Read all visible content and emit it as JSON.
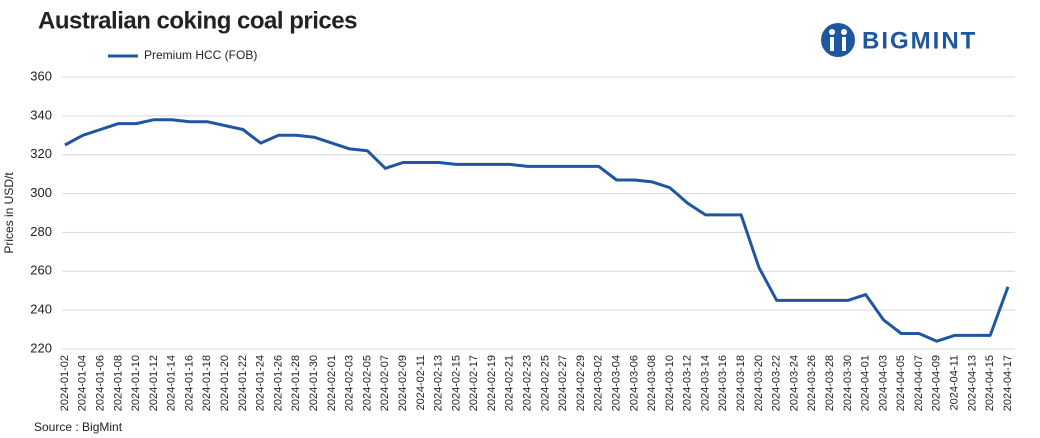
{
  "chart_data": {
    "type": "line",
    "title": "Australian coking coal prices",
    "brand": "BIGMINT",
    "source": "Source : BigMint",
    "y_label": "Prices in USD/t",
    "categories": [
      "2024-01-02",
      "2024-01-04",
      "2024-01-06",
      "2024-01-08",
      "2024-01-10",
      "2024-01-12",
      "2024-01-14",
      "2024-01-16",
      "2024-01-18",
      "2024-01-20",
      "2024-01-22",
      "2024-01-24",
      "2024-01-26",
      "2024-01-28",
      "2024-01-30",
      "2024-02-01",
      "2024-02-03",
      "2024-02-05",
      "2024-02-07",
      "2024-02-09",
      "2024-02-11",
      "2024-02-13",
      "2024-02-15",
      "2024-02-17",
      "2024-02-19",
      "2024-02-21",
      "2024-02-23",
      "2024-02-25",
      "2024-02-27",
      "2024-02-29",
      "2024-03-02",
      "2024-03-04",
      "2024-03-06",
      "2024-03-08",
      "2024-03-10",
      "2024-03-12",
      "2024-03-14",
      "2024-03-16",
      "2024-03-18",
      "2024-03-20",
      "2024-03-22",
      "2024-03-24",
      "2024-03-26",
      "2024-03-28",
      "2024-03-30",
      "2024-04-01",
      "2024-04-03",
      "2024-04-05",
      "2024-04-07",
      "2024-04-09",
      "2024-04-11",
      "2024-04-13",
      "2024-04-15",
      "2024-04-17"
    ],
    "series": [
      {
        "name": "Premium HCC (FOB)",
        "color": "#1f56a0",
        "values": [
          325,
          330,
          333,
          336,
          336,
          338,
          338,
          337,
          337,
          335,
          333,
          326,
          330,
          330,
          329,
          326,
          323,
          322,
          313,
          316,
          316,
          316,
          315,
          315,
          315,
          315,
          314,
          314,
          314,
          314,
          314,
          307,
          307,
          306,
          303,
          295,
          289,
          289,
          289,
          262,
          245,
          245,
          245,
          245,
          245,
          248,
          235,
          228,
          228,
          224,
          227,
          227,
          227,
          252
        ]
      }
    ],
    "ylim": [
      220,
      360
    ],
    "yticks": [
      220,
      240,
      260,
      280,
      300,
      320,
      340,
      360
    ],
    "grid": true
  }
}
